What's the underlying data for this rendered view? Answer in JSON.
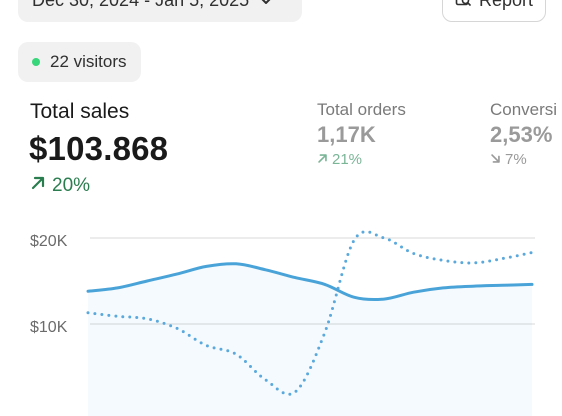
{
  "header": {
    "date_range": "Dec 30, 2024 - Jan 5, 2025",
    "report_label": "Report",
    "visitors": "22 visitors"
  },
  "metrics": {
    "total_sales": {
      "label": "Total sales",
      "value": "$103.868",
      "delta": "20%",
      "trend": "up"
    },
    "total_orders": {
      "label": "Total orders",
      "value": "1,17K",
      "delta": "21%",
      "trend": "up"
    },
    "conversion": {
      "label": "Conversi",
      "value": "2,53%",
      "delta": "7%",
      "trend": "down"
    }
  },
  "colors": {
    "accent": "#4aa3d8",
    "positive": "#2a7d4f",
    "live_dot": "#37d67a"
  },
  "chart_data": {
    "type": "line",
    "yticks": [
      "$20K",
      "$10K"
    ],
    "ylim": [
      5000,
      22000
    ],
    "series": [
      {
        "values": [
          13800,
          14200,
          15000,
          15800,
          16700,
          17000,
          16300,
          15400,
          14600,
          13100,
          12900,
          13700,
          14200,
          14400,
          14500,
          14600
        ],
        "style": "solid"
      },
      {
        "values": [
          11300,
          10900,
          10600,
          9500,
          7500,
          6500,
          3500,
          2100,
          9000,
          19800,
          20000,
          18200,
          17400,
          17100,
          17600,
          18300
        ],
        "style": "dotted"
      }
    ]
  }
}
